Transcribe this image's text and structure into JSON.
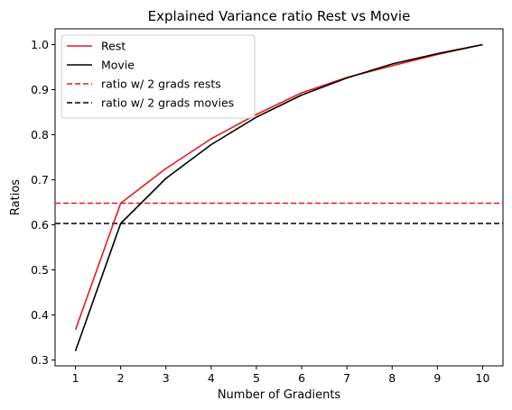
{
  "chart_data": {
    "type": "line",
    "title": "Explained Variance ratio Rest vs Movie",
    "xlabel": "Number of Gradients",
    "ylabel": "Ratios",
    "x": [
      1,
      2,
      3,
      4,
      5,
      6,
      7,
      8,
      9,
      10
    ],
    "xticks": [
      1,
      2,
      3,
      4,
      5,
      6,
      7,
      8,
      9,
      10
    ],
    "yticks": [
      0.3,
      0.4,
      0.5,
      0.6,
      0.7,
      0.8,
      0.9,
      1.0
    ],
    "ytick_labels": [
      "0.3",
      "0.4",
      "0.5",
      "0.6",
      "0.7",
      "0.8",
      "0.9",
      "1.0"
    ],
    "xlim": [
      0.55,
      10.45
    ],
    "ylim": [
      0.287,
      1.035
    ],
    "grid": false,
    "legend_position": "top-left",
    "series": [
      {
        "name": "Rest",
        "color": "#e41a1c",
        "style": "solid",
        "values": [
          0.367,
          0.648,
          0.725,
          0.791,
          0.845,
          0.893,
          0.927,
          0.953,
          0.978,
          1.0
        ]
      },
      {
        "name": "Movie",
        "color": "#000000",
        "style": "solid",
        "values": [
          0.32,
          0.603,
          0.703,
          0.778,
          0.839,
          0.888,
          0.926,
          0.957,
          0.98,
          1.0
        ]
      }
    ],
    "reference_lines": [
      {
        "name": "ratio w/ 2 grads rests",
        "color": "#e41a1c",
        "style": "dashed",
        "y": 0.648
      },
      {
        "name": "ratio w/ 2 grads movies",
        "color": "#000000",
        "style": "dashed",
        "y": 0.603
      }
    ]
  }
}
